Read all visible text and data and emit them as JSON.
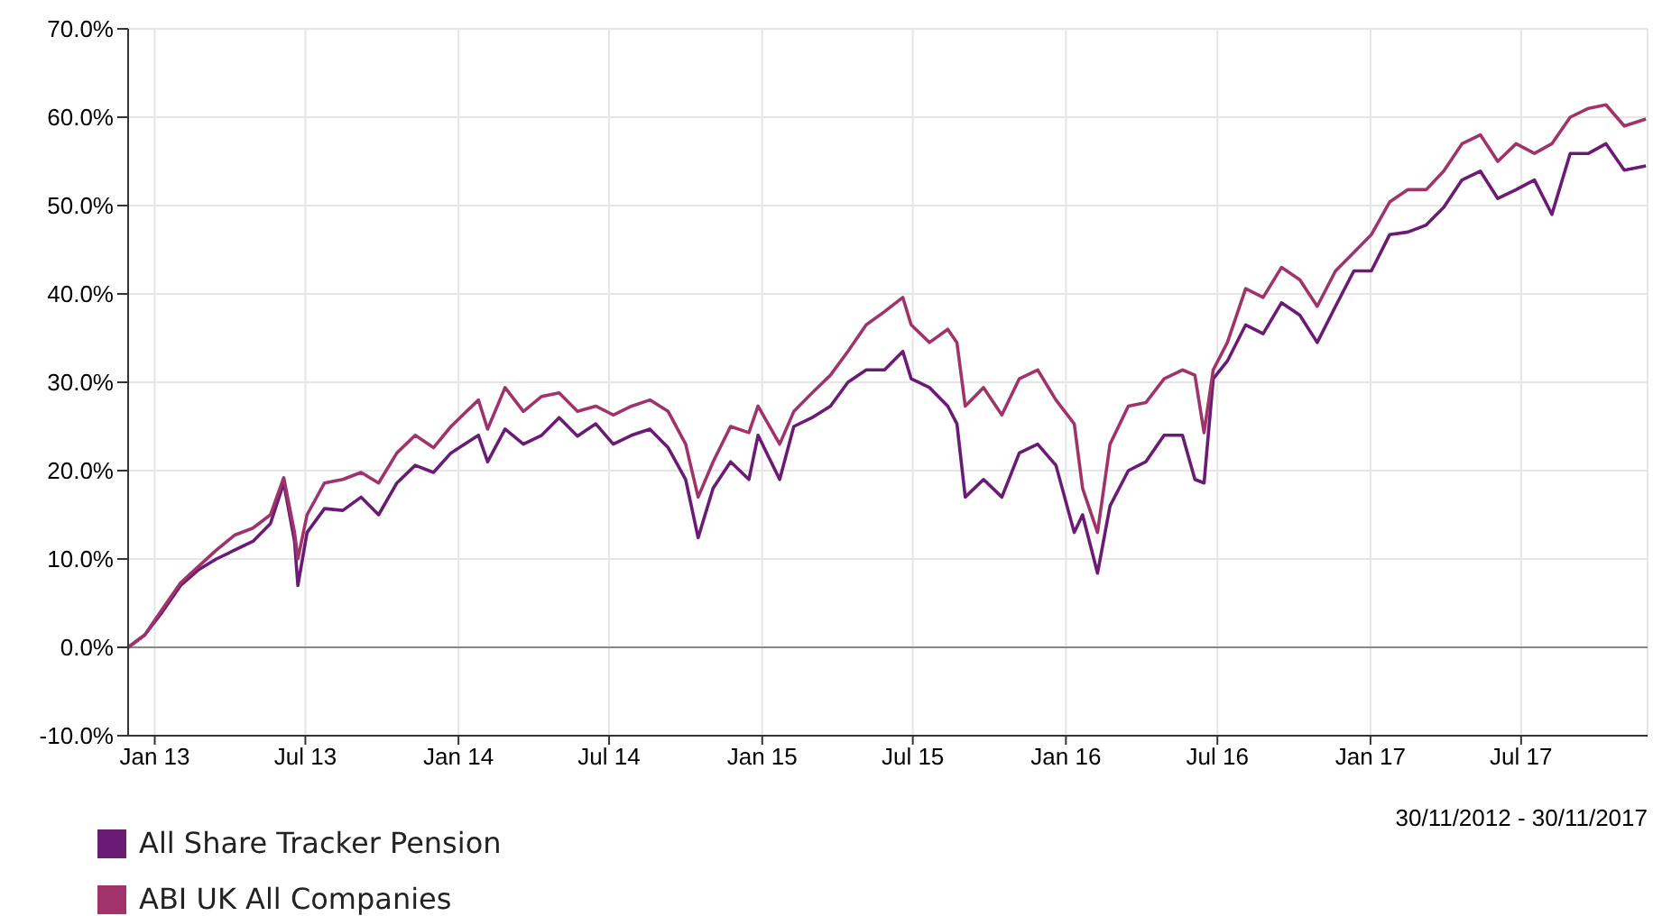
{
  "chart_data": {
    "type": "line",
    "x": [
      "2012-11-30",
      "2012-12-20",
      "2013-01-10",
      "2013-02-01",
      "2013-02-23",
      "2013-03-16",
      "2013-04-07",
      "2013-04-29",
      "2013-05-20",
      "2013-06-05",
      "2013-06-18",
      "2013-06-22",
      "2013-07-03",
      "2013-07-24",
      "2013-08-15",
      "2013-09-06",
      "2013-09-27",
      "2013-10-19",
      "2013-11-10",
      "2013-12-02",
      "2013-12-23",
      "2014-01-25",
      "2014-02-05",
      "2014-02-26",
      "2014-03-20",
      "2014-04-11",
      "2014-05-02",
      "2014-05-24",
      "2014-06-15",
      "2014-07-06",
      "2014-07-28",
      "2014-08-19",
      "2014-09-10",
      "2014-10-01",
      "2014-10-16",
      "2014-11-03",
      "2014-11-24",
      "2014-12-16",
      "2014-12-27",
      "2015-01-22",
      "2015-02-08",
      "2015-03-02",
      "2015-03-24",
      "2015-04-14",
      "2015-05-06",
      "2015-05-28",
      "2015-06-19",
      "2015-06-29",
      "2015-07-21",
      "2015-08-12",
      "2015-08-23",
      "2015-09-02",
      "2015-09-24",
      "2015-10-16",
      "2015-11-06",
      "2015-11-28",
      "2015-12-20",
      "2016-01-11",
      "2016-01-21",
      "2016-02-08",
      "2016-02-23",
      "2016-03-16",
      "2016-04-06",
      "2016-04-28",
      "2016-05-20",
      "2016-06-04",
      "2016-06-15",
      "2016-06-26",
      "2016-07-13",
      "2016-08-04",
      "2016-08-25",
      "2016-09-16",
      "2016-10-08",
      "2016-10-29",
      "2016-11-20",
      "2016-12-12",
      "2017-01-02",
      "2017-01-24",
      "2017-02-15",
      "2017-03-09",
      "2017-03-30",
      "2017-04-21",
      "2017-05-13",
      "2017-06-03",
      "2017-06-25",
      "2017-07-17",
      "2017-08-07",
      "2017-08-29",
      "2017-09-20",
      "2017-10-11",
      "2017-11-02",
      "2017-11-28"
    ],
    "series": [
      {
        "name": "All Share Tracker Pension",
        "color": "#6a1b74",
        "values": [
          0,
          1.4,
          4,
          7,
          8.8,
          10,
          11,
          12,
          14,
          18.6,
          12,
          7,
          13,
          15.7,
          15.5,
          17,
          15,
          18.6,
          20.6,
          19.8,
          22,
          24,
          21,
          24.7,
          23,
          24,
          26,
          23.9,
          25.3,
          23,
          24,
          24.7,
          22.6,
          19,
          12.4,
          18,
          21,
          19,
          24,
          19,
          25,
          26,
          27.3,
          30,
          31.4,
          31.4,
          33.5,
          30.4,
          29.4,
          27.3,
          25.3,
          17,
          19,
          17,
          22,
          23,
          20.6,
          13,
          15,
          8.4,
          16,
          20,
          21,
          24,
          24,
          19,
          18.6,
          30.4,
          32.4,
          36.5,
          35.5,
          39,
          37.6,
          34.5,
          38.6,
          42.6,
          42.6,
          46.7,
          47,
          47.8,
          49.8,
          52.9,
          53.9,
          50.8,
          51.8,
          52.9,
          49,
          55.9,
          55.9,
          57,
          54,
          54.5
        ]
      },
      {
        "name": "ABI UK All Companies",
        "color": "#a0346a",
        "values": [
          0,
          1.4,
          4.3,
          7.3,
          9.2,
          11,
          12.7,
          13.5,
          15,
          19.2,
          13,
          10,
          15,
          18.6,
          19,
          19.8,
          18.6,
          22,
          24,
          22.6,
          25,
          28,
          24.7,
          29.4,
          26.7,
          28.4,
          28.8,
          26.7,
          27.3,
          26.3,
          27.3,
          28,
          26.7,
          23,
          17,
          21,
          25,
          24.3,
          27.3,
          23,
          26.7,
          28.8,
          30.8,
          33.5,
          36.5,
          38,
          39.6,
          36.5,
          34.5,
          36,
          34.5,
          27.3,
          29.4,
          26.3,
          30.4,
          31.4,
          28,
          25.3,
          18,
          13,
          23,
          27.3,
          27.7,
          30.4,
          31.4,
          30.8,
          24.3,
          31.4,
          34.5,
          40.6,
          39.6,
          43,
          41.6,
          38.6,
          42.6,
          44.7,
          46.7,
          50.4,
          51.8,
          51.8,
          53.9,
          57,
          58,
          55,
          57,
          55.9,
          57,
          60,
          61,
          61.4,
          59,
          59.8
        ]
      }
    ],
    "xlim": [
      "2012-11-30",
      "2017-11-30"
    ],
    "xticks": [
      {
        "value": "2013-01-01",
        "label": "Jan 13"
      },
      {
        "value": "2013-07-01",
        "label": "Jul 13"
      },
      {
        "value": "2014-01-01",
        "label": "Jan 14"
      },
      {
        "value": "2014-07-01",
        "label": "Jul 14"
      },
      {
        "value": "2015-01-01",
        "label": "Jan 15"
      },
      {
        "value": "2015-07-01",
        "label": "Jul 15"
      },
      {
        "value": "2016-01-01",
        "label": "Jan 16"
      },
      {
        "value": "2016-07-01",
        "label": "Jul 16"
      },
      {
        "value": "2017-01-01",
        "label": "Jan 17"
      },
      {
        "value": "2017-07-01",
        "label": "Jul 17"
      }
    ],
    "ylim": [
      -10,
      70
    ],
    "yticks": [
      {
        "value": -10,
        "label": "-10.0%"
      },
      {
        "value": 0,
        "label": "0.0%"
      },
      {
        "value": 10,
        "label": "10.0%"
      },
      {
        "value": 20,
        "label": "20.0%"
      },
      {
        "value": 30,
        "label": "30.0%"
      },
      {
        "value": 40,
        "label": "40.0%"
      },
      {
        "value": 50,
        "label": "50.0%"
      },
      {
        "value": 60,
        "label": "60.0%"
      },
      {
        "value": 70,
        "label": "70.0%"
      }
    ],
    "ref_lines": [
      {
        "axis": "y",
        "value": 0,
        "color": "#888888"
      }
    ],
    "grid": true,
    "legend": "bottom left",
    "marker": "none",
    "line_style": "solid",
    "annotations": [
      "30/11/2012 - 30/11/2017"
    ]
  }
}
